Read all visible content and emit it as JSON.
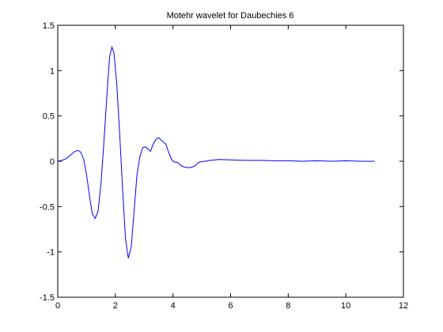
{
  "chart_data": {
    "type": "line",
    "title": "Motehr wavelet for Daubechies 6",
    "xlabel": "",
    "ylabel": "",
    "xlim": [
      0,
      12
    ],
    "ylim": [
      -1.5,
      1.5
    ],
    "x_ticks": [
      0,
      2,
      4,
      6,
      8,
      10,
      12
    ],
    "y_ticks": [
      -1.5,
      -1,
      -0.5,
      0,
      0.5,
      1,
      1.5
    ],
    "x_tick_labels": [
      "0",
      "2",
      "4",
      "6",
      "8",
      "10",
      "12"
    ],
    "y_tick_labels": [
      "-1.5",
      "-1",
      "-0.5",
      "0",
      "0.5",
      "1",
      "1.5"
    ],
    "grid": false,
    "line_color": "#0000ff",
    "series": [
      {
        "points": [
          [
            0.0,
            0.0
          ],
          [
            0.15,
            0.01
          ],
          [
            0.3,
            0.03
          ],
          [
            0.45,
            0.07
          ],
          [
            0.6,
            0.11
          ],
          [
            0.7,
            0.12
          ],
          [
            0.8,
            0.1
          ],
          [
            0.9,
            0.02
          ],
          [
            1.0,
            -0.15
          ],
          [
            1.1,
            -0.38
          ],
          [
            1.2,
            -0.58
          ],
          [
            1.3,
            -0.63
          ],
          [
            1.4,
            -0.55
          ],
          [
            1.5,
            -0.25
          ],
          [
            1.6,
            0.2
          ],
          [
            1.7,
            0.7
          ],
          [
            1.8,
            1.15
          ],
          [
            1.88,
            1.26
          ],
          [
            1.95,
            1.2
          ],
          [
            2.05,
            0.85
          ],
          [
            2.15,
            0.3
          ],
          [
            2.25,
            -0.3
          ],
          [
            2.35,
            -0.85
          ],
          [
            2.45,
            -1.07
          ],
          [
            2.55,
            -0.95
          ],
          [
            2.65,
            -0.55
          ],
          [
            2.75,
            -0.15
          ],
          [
            2.85,
            0.05
          ],
          [
            2.95,
            0.15
          ],
          [
            3.05,
            0.16
          ],
          [
            3.15,
            0.13
          ],
          [
            3.22,
            0.11
          ],
          [
            3.3,
            0.18
          ],
          [
            3.4,
            0.24
          ],
          [
            3.5,
            0.26
          ],
          [
            3.6,
            0.23
          ],
          [
            3.75,
            0.19
          ],
          [
            3.85,
            0.1
          ],
          [
            3.95,
            0.02
          ],
          [
            4.05,
            -0.01
          ],
          [
            4.15,
            -0.01
          ],
          [
            4.25,
            -0.04
          ],
          [
            4.35,
            -0.06
          ],
          [
            4.5,
            -0.07
          ],
          [
            4.6,
            -0.07
          ],
          [
            4.7,
            -0.06
          ],
          [
            4.8,
            -0.04
          ],
          [
            4.9,
            -0.01
          ],
          [
            5.1,
            0.0
          ],
          [
            5.3,
            0.01
          ],
          [
            5.6,
            0.02
          ],
          [
            6.0,
            0.015
          ],
          [
            6.5,
            0.01
          ],
          [
            7.0,
            0.01
          ],
          [
            7.5,
            0.005
          ],
          [
            8.0,
            0.005
          ],
          [
            8.5,
            0.0
          ],
          [
            9.0,
            0.005
          ],
          [
            9.5,
            0.0
          ],
          [
            10.0,
            0.005
          ],
          [
            10.5,
            0.0
          ],
          [
            11.0,
            0.0
          ]
        ]
      }
    ]
  }
}
